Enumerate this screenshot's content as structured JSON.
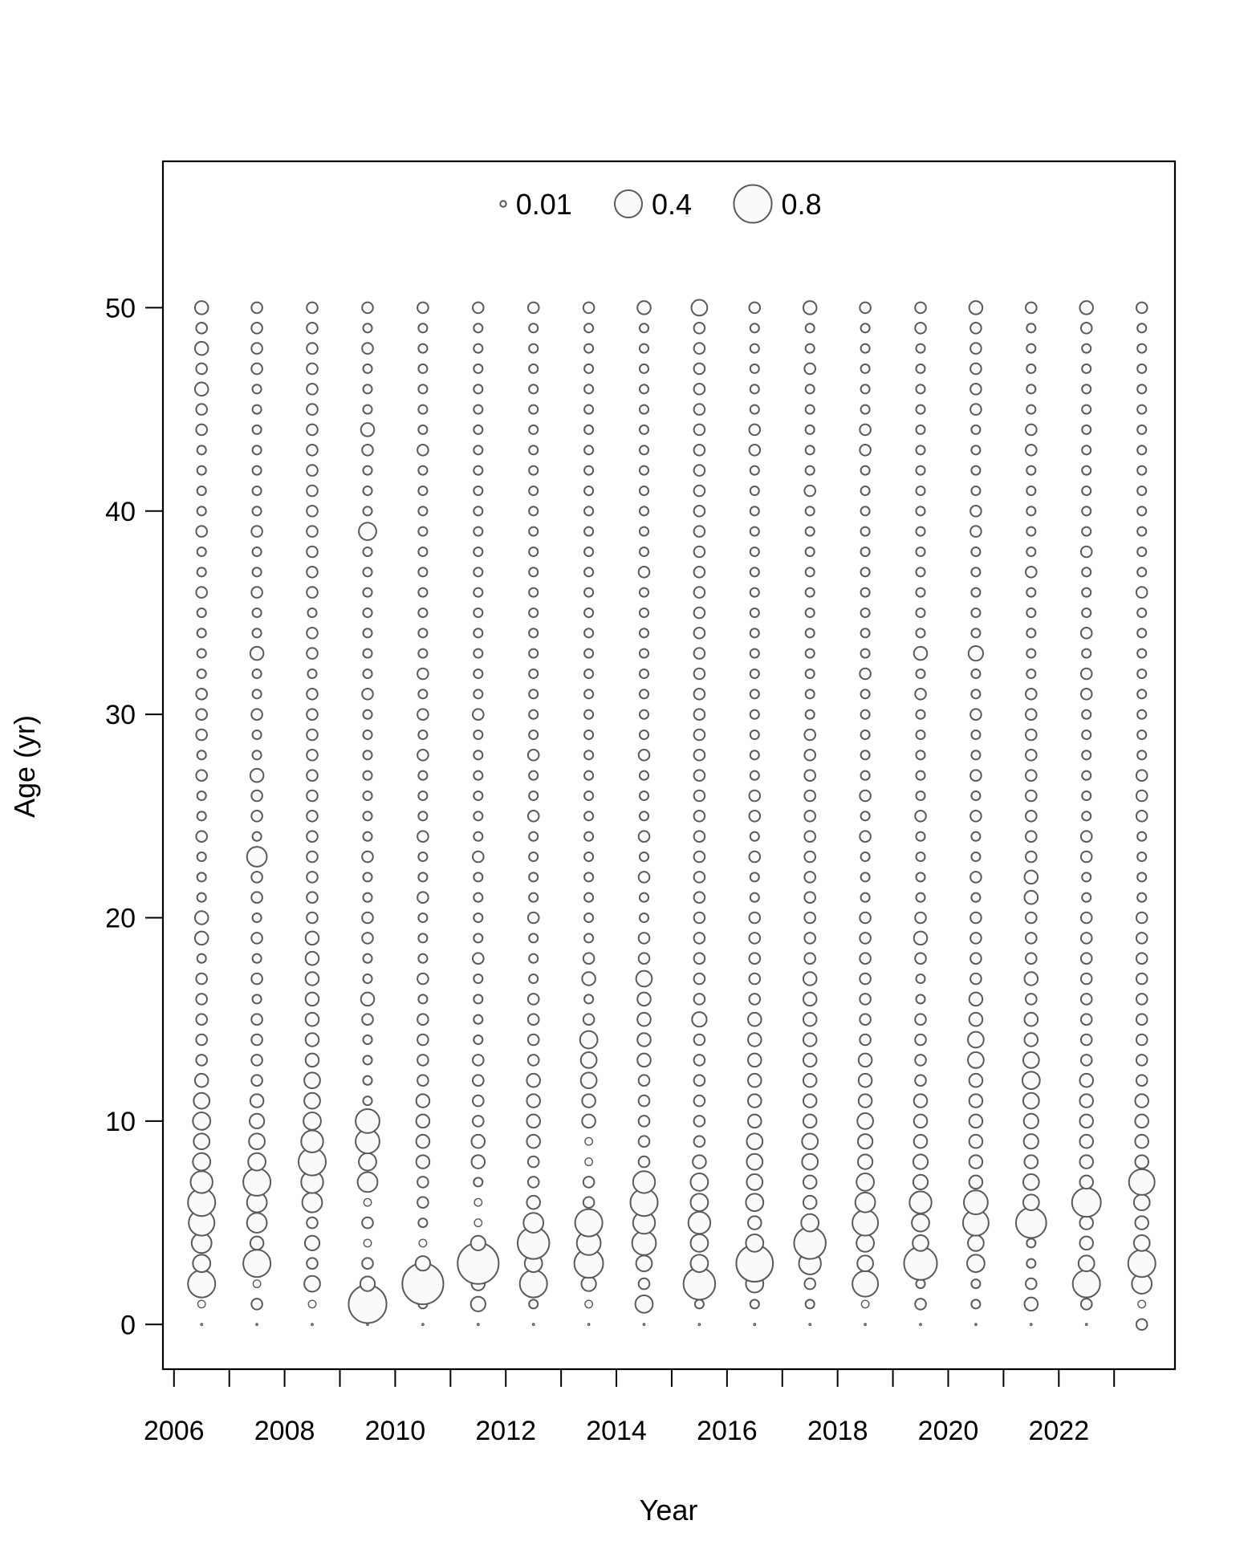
{
  "chart_data": {
    "type": "scatter",
    "subtype": "bubble",
    "title": "",
    "xlabel": "Year",
    "ylabel": "Age (yr)",
    "xlim": [
      2005.8,
      2024.1
    ],
    "ylim": [
      -2.2,
      57.2
    ],
    "x_ticks": [
      2006,
      2007,
      2008,
      2009,
      2010,
      2011,
      2012,
      2013,
      2014,
      2015,
      2016,
      2017,
      2018,
      2019,
      2020,
      2021,
      2022,
      2023
    ],
    "x_tick_labels": [
      "2006",
      "2008",
      "2010",
      "2012",
      "2014",
      "2016",
      "2018",
      "2020",
      "2022"
    ],
    "y_ticks": [
      0,
      10,
      20,
      30,
      40,
      50
    ],
    "y_tick_labels": [
      "0",
      "10",
      "20",
      "30",
      "40",
      "50"
    ],
    "grid": false,
    "legend": {
      "placement": "top",
      "entries": [
        {
          "label": "0.01",
          "value": 0.01
        },
        {
          "label": "0.4",
          "value": 0.4
        },
        {
          "label": "0.8",
          "value": 0.8
        }
      ]
    },
    "years": [
      2006,
      2007,
      2008,
      2009,
      2010,
      2011,
      2012,
      2013,
      2014,
      2015,
      2016,
      2017,
      2018,
      2019,
      2020,
      2021,
      2022,
      2023
    ],
    "ages": [
      0,
      1,
      2,
      3,
      4,
      5,
      6,
      7,
      8,
      9,
      10,
      11,
      12,
      13,
      14,
      15,
      16,
      17,
      18,
      19,
      20,
      21,
      22,
      23,
      24,
      25,
      26,
      27,
      28,
      29,
      30,
      31,
      32,
      33,
      34,
      35,
      36,
      37,
      38,
      39,
      40,
      41,
      42,
      43,
      44,
      45,
      46,
      47,
      48,
      49,
      50
    ],
    "bubble_values": {
      "2006": [
        0,
        0.02,
        0.4,
        0.15,
        0.2,
        0.35,
        0.4,
        0.25,
        0.15,
        0.12,
        0.15,
        0.12,
        0.08,
        0.05,
        0.05,
        0.05,
        0.05,
        0.05,
        0.03,
        0.08,
        0.08,
        0.03,
        0.03,
        0.03,
        0.05,
        0.03,
        0.03,
        0.05,
        0.03,
        0.05,
        0.05,
        0.05,
        0.03,
        0.03,
        0.03,
        0.03,
        0.05,
        0.03,
        0.03,
        0.05,
        0.03,
        0.03,
        0.03,
        0.03,
        0.05,
        0.05,
        0.08,
        0.05,
        0.08,
        0.05,
        0.08
      ],
      "2007": [
        0,
        0.05,
        0.02,
        0.4,
        0.08,
        0.2,
        0.2,
        0.4,
        0.15,
        0.12,
        0.1,
        0.08,
        0.05,
        0.05,
        0.05,
        0.05,
        0.03,
        0.05,
        0.03,
        0.05,
        0.03,
        0.05,
        0.05,
        0.2,
        0.03,
        0.05,
        0.05,
        0.08,
        0.03,
        0.03,
        0.05,
        0.03,
        0.03,
        0.08,
        0.03,
        0.03,
        0.05,
        0.03,
        0.03,
        0.05,
        0.03,
        0.03,
        0.03,
        0.03,
        0.03,
        0.03,
        0.03,
        0.05,
        0.05,
        0.05,
        0.05
      ],
      "2008": [
        0,
        0.02,
        0.12,
        0.05,
        0.1,
        0.05,
        0.2,
        0.25,
        0.4,
        0.25,
        0.15,
        0.12,
        0.12,
        0.08,
        0.08,
        0.08,
        0.08,
        0.08,
        0.08,
        0.08,
        0.05,
        0.05,
        0.05,
        0.05,
        0.05,
        0.05,
        0.05,
        0.05,
        0.05,
        0.05,
        0.05,
        0.05,
        0.03,
        0.05,
        0.05,
        0.03,
        0.05,
        0.05,
        0.05,
        0.05,
        0.05,
        0.05,
        0.05,
        0.05,
        0.05,
        0.05,
        0.05,
        0.05,
        0.05,
        0.05,
        0.05
      ],
      "2009": [
        0,
        0.8,
        0.1,
        0.05,
        0.02,
        0.05,
        0.02,
        0.2,
        0.15,
        0.3,
        0.3,
        0.03,
        0.03,
        0.03,
        0.03,
        0.05,
        0.08,
        0.03,
        0.03,
        0.05,
        0.05,
        0.03,
        0.03,
        0.05,
        0.03,
        0.03,
        0.03,
        0.03,
        0.03,
        0.03,
        0.03,
        0.05,
        0.03,
        0.03,
        0.03,
        0.03,
        0.03,
        0.03,
        0.03,
        0.15,
        0.03,
        0.03,
        0.03,
        0.05,
        0.08,
        0.03,
        0.03,
        0.03,
        0.05,
        0.03,
        0.05
      ],
      "2010": [
        0,
        0.03,
        0.95,
        0.1,
        0.02,
        0.03,
        0.05,
        0.05,
        0.08,
        0.08,
        0.08,
        0.08,
        0.05,
        0.05,
        0.05,
        0.05,
        0.03,
        0.05,
        0.03,
        0.03,
        0.03,
        0.05,
        0.03,
        0.03,
        0.05,
        0.03,
        0.03,
        0.03,
        0.05,
        0.03,
        0.05,
        0.03,
        0.05,
        0.03,
        0.03,
        0.03,
        0.03,
        0.03,
        0.03,
        0.03,
        0.03,
        0.03,
        0.03,
        0.05,
        0.03,
        0.03,
        0.03,
        0.03,
        0.03,
        0.03,
        0.05
      ],
      "2011": [
        0,
        0.1,
        0.08,
        0.95,
        0.1,
        0.02,
        0.02,
        0.03,
        0.08,
        0.08,
        0.05,
        0.05,
        0.05,
        0.05,
        0.03,
        0.03,
        0.03,
        0.03,
        0.05,
        0.03,
        0.03,
        0.03,
        0.03,
        0.05,
        0.03,
        0.03,
        0.03,
        0.03,
        0.03,
        0.03,
        0.05,
        0.03,
        0.03,
        0.03,
        0.03,
        0.03,
        0.03,
        0.03,
        0.03,
        0.03,
        0.03,
        0.03,
        0.03,
        0.03,
        0.03,
        0.03,
        0.03,
        0.03,
        0.03,
        0.03,
        0.05
      ],
      "2012": [
        0,
        0.03,
        0.4,
        0.15,
        0.55,
        0.2,
        0.08,
        0.05,
        0.05,
        0.08,
        0.08,
        0.08,
        0.08,
        0.05,
        0.05,
        0.05,
        0.05,
        0.03,
        0.03,
        0.03,
        0.05,
        0.03,
        0.03,
        0.03,
        0.03,
        0.05,
        0.03,
        0.03,
        0.05,
        0.03,
        0.03,
        0.03,
        0.03,
        0.03,
        0.03,
        0.03,
        0.03,
        0.03,
        0.03,
        0.03,
        0.03,
        0.03,
        0.03,
        0.03,
        0.03,
        0.03,
        0.03,
        0.03,
        0.03,
        0.03,
        0.05
      ],
      "2013": [
        0,
        0.02,
        0.1,
        0.45,
        0.3,
        0.4,
        0.05,
        0.05,
        0.02,
        0.02,
        0.08,
        0.08,
        0.12,
        0.12,
        0.15,
        0.05,
        0.03,
        0.08,
        0.05,
        0.03,
        0.03,
        0.03,
        0.03,
        0.03,
        0.03,
        0.03,
        0.03,
        0.03,
        0.03,
        0.03,
        0.03,
        0.03,
        0.03,
        0.03,
        0.03,
        0.03,
        0.03,
        0.03,
        0.03,
        0.03,
        0.03,
        0.03,
        0.03,
        0.03,
        0.03,
        0.03,
        0.03,
        0.03,
        0.03,
        0.03,
        0.05
      ],
      "2014": [
        0,
        0.15,
        0.05,
        0.12,
        0.3,
        0.25,
        0.4,
        0.25,
        0.05,
        0.05,
        0.05,
        0.05,
        0.05,
        0.08,
        0.08,
        0.08,
        0.08,
        0.12,
        0.05,
        0.05,
        0.03,
        0.03,
        0.05,
        0.03,
        0.05,
        0.03,
        0.03,
        0.03,
        0.05,
        0.03,
        0.03,
        0.03,
        0.03,
        0.03,
        0.03,
        0.03,
        0.03,
        0.05,
        0.03,
        0.03,
        0.03,
        0.03,
        0.03,
        0.03,
        0.03,
        0.03,
        0.03,
        0.03,
        0.03,
        0.03,
        0.08
      ],
      "2015": [
        0,
        0.03,
        0.55,
        0.15,
        0.15,
        0.25,
        0.15,
        0.15,
        0.08,
        0.05,
        0.05,
        0.05,
        0.05,
        0.05,
        0.05,
        0.1,
        0.05,
        0.05,
        0.05,
        0.05,
        0.05,
        0.05,
        0.05,
        0.05,
        0.05,
        0.05,
        0.05,
        0.05,
        0.05,
        0.05,
        0.05,
        0.05,
        0.05,
        0.05,
        0.05,
        0.05,
        0.05,
        0.05,
        0.05,
        0.05,
        0.05,
        0.05,
        0.05,
        0.05,
        0.05,
        0.05,
        0.05,
        0.05,
        0.05,
        0.05,
        0.12
      ],
      "2016": [
        0,
        0.03,
        0.15,
        0.75,
        0.15,
        0.08,
        0.15,
        0.12,
        0.12,
        0.12,
        0.08,
        0.08,
        0.08,
        0.08,
        0.08,
        0.08,
        0.05,
        0.05,
        0.05,
        0.05,
        0.05,
        0.03,
        0.03,
        0.05,
        0.03,
        0.05,
        0.05,
        0.03,
        0.03,
        0.03,
        0.03,
        0.03,
        0.03,
        0.03,
        0.03,
        0.03,
        0.03,
        0.03,
        0.03,
        0.03,
        0.03,
        0.03,
        0.03,
        0.05,
        0.05,
        0.03,
        0.03,
        0.03,
        0.03,
        0.03,
        0.05
      ],
      "2017": [
        0,
        0.03,
        0.05,
        0.25,
        0.55,
        0.15,
        0.08,
        0.08,
        0.12,
        0.12,
        0.08,
        0.08,
        0.08,
        0.08,
        0.08,
        0.08,
        0.08,
        0.08,
        0.05,
        0.05,
        0.05,
        0.05,
        0.05,
        0.05,
        0.05,
        0.05,
        0.05,
        0.05,
        0.05,
        0.05,
        0.03,
        0.03,
        0.03,
        0.03,
        0.03,
        0.03,
        0.03,
        0.03,
        0.03,
        0.03,
        0.03,
        0.05,
        0.03,
        0.03,
        0.03,
        0.03,
        0.03,
        0.05,
        0.03,
        0.03,
        0.08
      ],
      "2018": [
        0,
        0.02,
        0.35,
        0.12,
        0.15,
        0.35,
        0.2,
        0.15,
        0.1,
        0.1,
        0.12,
        0.08,
        0.08,
        0.08,
        0.05,
        0.05,
        0.05,
        0.05,
        0.05,
        0.05,
        0.05,
        0.03,
        0.03,
        0.03,
        0.05,
        0.03,
        0.05,
        0.03,
        0.03,
        0.03,
        0.03,
        0.03,
        0.05,
        0.03,
        0.03,
        0.03,
        0.03,
        0.03,
        0.03,
        0.03,
        0.03,
        0.03,
        0.03,
        0.05,
        0.05,
        0.03,
        0.03,
        0.03,
        0.03,
        0.03,
        0.05
      ],
      "2019": [
        0,
        0.05,
        0.03,
        0.6,
        0.12,
        0.15,
        0.25,
        0.1,
        0.1,
        0.08,
        0.08,
        0.08,
        0.05,
        0.05,
        0.05,
        0.05,
        0.03,
        0.03,
        0.05,
        0.08,
        0.05,
        0.03,
        0.03,
        0.03,
        0.03,
        0.05,
        0.03,
        0.03,
        0.03,
        0.03,
        0.03,
        0.05,
        0.03,
        0.08,
        0.03,
        0.03,
        0.03,
        0.03,
        0.03,
        0.03,
        0.03,
        0.03,
        0.03,
        0.03,
        0.03,
        0.03,
        0.03,
        0.03,
        0.03,
        0.05,
        0.05
      ],
      "2020": [
        0,
        0.03,
        0.03,
        0.15,
        0.12,
        0.35,
        0.3,
        0.08,
        0.08,
        0.08,
        0.08,
        0.08,
        0.08,
        0.12,
        0.12,
        0.08,
        0.08,
        0.05,
        0.05,
        0.05,
        0.05,
        0.03,
        0.05,
        0.03,
        0.03,
        0.05,
        0.03,
        0.05,
        0.03,
        0.03,
        0.05,
        0.03,
        0.03,
        0.1,
        0.03,
        0.03,
        0.03,
        0.03,
        0.03,
        0.05,
        0.05,
        0.03,
        0.03,
        0.03,
        0.03,
        0.05,
        0.05,
        0.05,
        0.05,
        0.05,
        0.08
      ],
      "2021": [
        0,
        0.08,
        0.05,
        0.03,
        0.03,
        0.5,
        0.12,
        0.12,
        0.08,
        0.1,
        0.1,
        0.12,
        0.15,
        0.12,
        0.08,
        0.08,
        0.05,
        0.08,
        0.05,
        0.05,
        0.05,
        0.08,
        0.08,
        0.05,
        0.05,
        0.05,
        0.05,
        0.05,
        0.05,
        0.05,
        0.05,
        0.05,
        0.03,
        0.03,
        0.03,
        0.03,
        0.03,
        0.05,
        0.03,
        0.03,
        0.03,
        0.03,
        0.03,
        0.05,
        0.05,
        0.03,
        0.03,
        0.03,
        0.03,
        0.03,
        0.05
      ],
      "2022": [
        0,
        0.05,
        0.4,
        0.12,
        0.08,
        0.08,
        0.45,
        0.08,
        0.08,
        0.08,
        0.08,
        0.08,
        0.08,
        0.05,
        0.05,
        0.05,
        0.05,
        0.05,
        0.05,
        0.05,
        0.05,
        0.03,
        0.03,
        0.05,
        0.05,
        0.03,
        0.03,
        0.03,
        0.03,
        0.03,
        0.03,
        0.05,
        0.05,
        0.03,
        0.05,
        0.03,
        0.03,
        0.03,
        0.05,
        0.03,
        0.03,
        0.03,
        0.03,
        0.03,
        0.03,
        0.03,
        0.03,
        0.03,
        0.03,
        0.05,
        0.08
      ],
      "2023": [
        0.05,
        0.02,
        0.2,
        0.4,
        0.12,
        0.08,
        0.12,
        0.35,
        0.08,
        0.08,
        0.08,
        0.08,
        0.05,
        0.05,
        0.05,
        0.05,
        0.05,
        0.05,
        0.05,
        0.05,
        0.05,
        0.03,
        0.03,
        0.03,
        0.03,
        0.05,
        0.05,
        0.05,
        0.03,
        0.03,
        0.03,
        0.03,
        0.03,
        0.03,
        0.03,
        0.03,
        0.05,
        0.03,
        0.03,
        0.03,
        0.03,
        0.03,
        0.03,
        0.03,
        0.03,
        0.03,
        0.03,
        0.03,
        0.03,
        0.03,
        0.05
      ]
    },
    "bubble_stroke": "#5a5a5a",
    "bubble_fill": "#fafafa"
  }
}
